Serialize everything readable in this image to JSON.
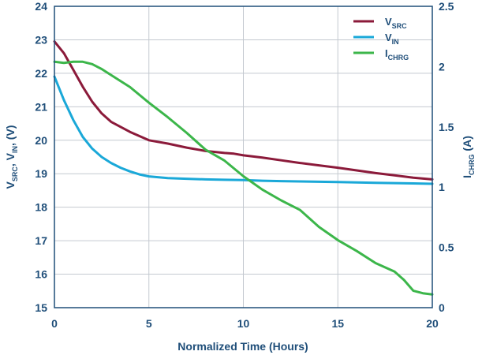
{
  "chart_data": {
    "type": "line",
    "xlabel": "Normalized Time (Hours)",
    "ylabel_left": {
      "main": "V",
      "sub1": "SRC",
      "mid": ", V",
      "sub2": "IN",
      "tail": ", (V)"
    },
    "ylabel_right": {
      "main": "I",
      "sub": "CHRG",
      "tail": " (A)"
    },
    "xlim": [
      0,
      20
    ],
    "ylim_left": [
      15,
      24
    ],
    "ylim_right": [
      0,
      2.5
    ],
    "x_ticks": [
      "0",
      "5",
      "10",
      "15",
      "20"
    ],
    "y_left_ticks": [
      "15",
      "16",
      "17",
      "18",
      "19",
      "20",
      "21",
      "22",
      "23",
      "24"
    ],
    "y_right_ticks": [
      "0",
      "0.5",
      "1",
      "1.5",
      "2",
      "2.5"
    ],
    "grid": true,
    "legend_position": "top-right",
    "series": [
      {
        "name": "VSRC",
        "label_main": "V",
        "label_sub": "SRC",
        "axis": "left",
        "color": "#8b1a3a",
        "x": [
          0,
          0.5,
          1,
          1.5,
          2,
          2.5,
          3,
          4,
          5,
          6,
          7,
          8,
          9,
          9.5,
          10,
          11,
          12,
          13,
          14,
          15,
          16,
          17,
          18,
          19,
          20
        ],
        "y": [
          22.95,
          22.6,
          22.1,
          21.6,
          21.15,
          20.8,
          20.55,
          20.25,
          20.0,
          19.9,
          19.78,
          19.68,
          19.62,
          19.6,
          19.55,
          19.48,
          19.4,
          19.32,
          19.25,
          19.18,
          19.1,
          19.02,
          18.95,
          18.88,
          18.83
        ]
      },
      {
        "name": "VIN",
        "label_main": "V",
        "label_sub": "IN",
        "axis": "left",
        "color": "#1aa8d8",
        "x": [
          0,
          0.5,
          1,
          1.5,
          2,
          2.5,
          3,
          3.5,
          4,
          4.5,
          5,
          6,
          7,
          8,
          9,
          10,
          11,
          12,
          13,
          14,
          15,
          16,
          17,
          18,
          19,
          20
        ],
        "y": [
          21.9,
          21.2,
          20.6,
          20.1,
          19.75,
          19.5,
          19.32,
          19.18,
          19.07,
          18.98,
          18.92,
          18.87,
          18.85,
          18.83,
          18.82,
          18.81,
          18.79,
          18.78,
          18.77,
          18.76,
          18.75,
          18.74,
          18.73,
          18.72,
          18.71,
          18.7
        ]
      },
      {
        "name": "ICHRG",
        "label_main": "I",
        "label_sub": "CHRG",
        "axis": "right",
        "color": "#3cb64a",
        "x": [
          0,
          0.5,
          1,
          1.5,
          2,
          2.5,
          3,
          4,
          5,
          6,
          7,
          8,
          9,
          10,
          11,
          12,
          13,
          14,
          15,
          16,
          17,
          18,
          18.5,
          19,
          19.5,
          20
        ],
        "y": [
          2.04,
          2.03,
          2.04,
          2.04,
          2.02,
          1.98,
          1.93,
          1.83,
          1.7,
          1.58,
          1.45,
          1.31,
          1.22,
          1.09,
          0.98,
          0.89,
          0.81,
          0.67,
          0.56,
          0.47,
          0.37,
          0.3,
          0.23,
          0.14,
          0.12,
          0.11
        ]
      }
    ]
  }
}
